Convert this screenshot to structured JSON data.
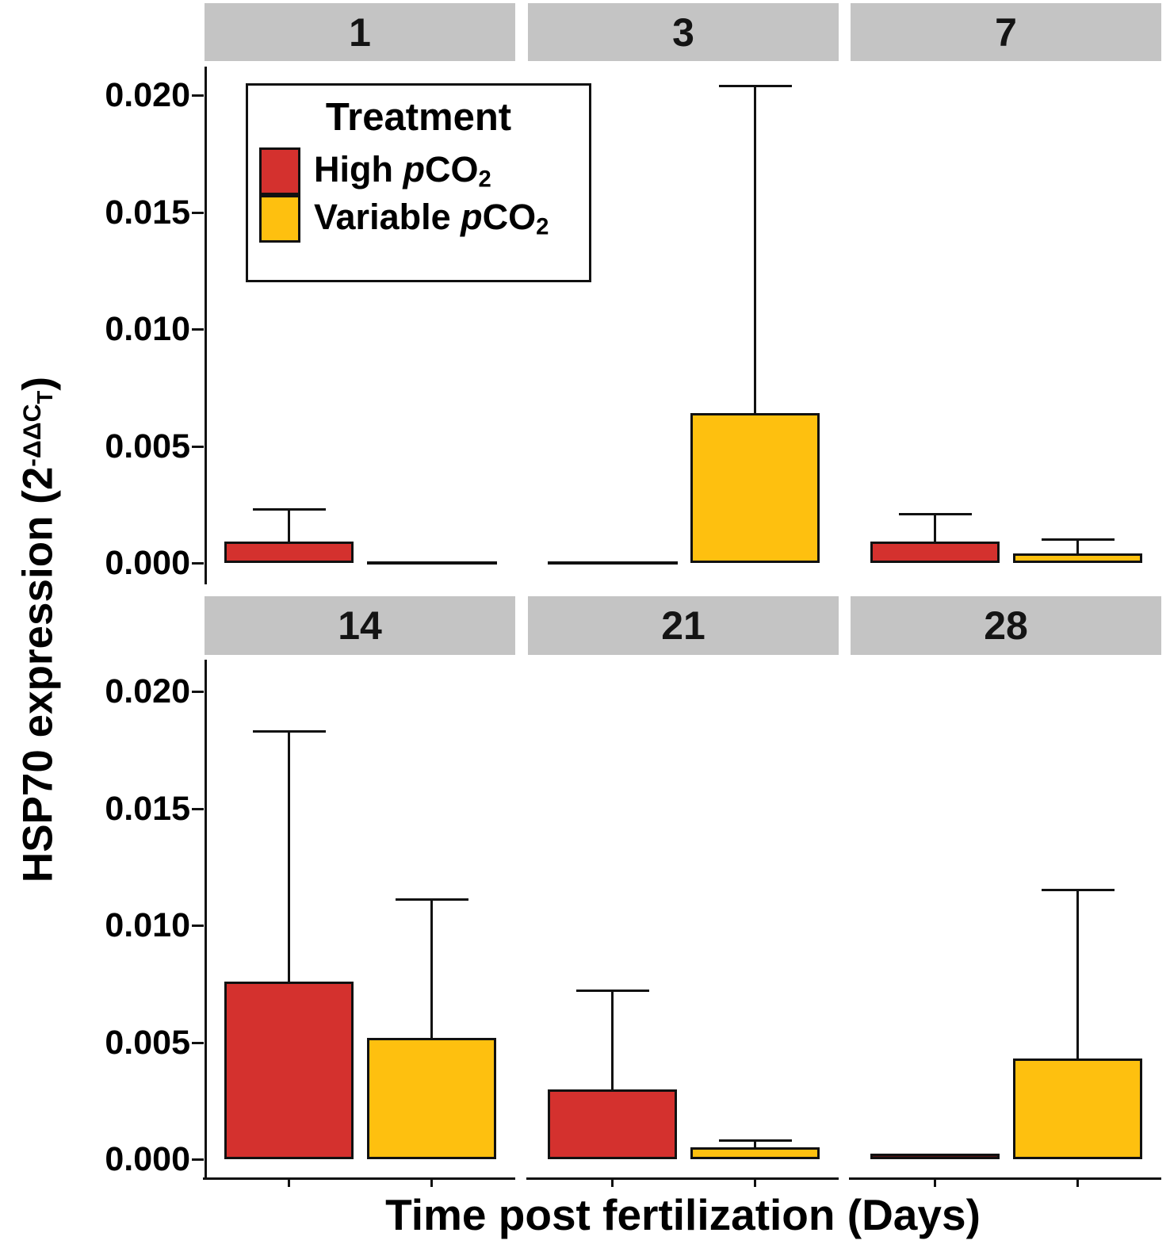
{
  "figure": {
    "xlabel": "Time post fertilization (Days)",
    "ylabel": {
      "text": "HSP70 expression (2-ΔΔCT)",
      "base": "HSP70 expression (2",
      "sup": "-ΔΔC",
      "sub": "T",
      "close": ")"
    },
    "legend": {
      "title": "Treatment",
      "position": "top-left panel",
      "items": [
        {
          "label": "High pCO2",
          "color": "#D4312E"
        },
        {
          "label": "Variable pCO2",
          "color": "#FEC00F"
        }
      ]
    }
  },
  "chart_data": {
    "type": "bar",
    "title": "",
    "xlabel": "Time post fertilization (Days)",
    "ylabel": "HSP70 expression (2-ΔΔCT)",
    "facet_variable": "Time post fertilization (Days)",
    "grid": false,
    "y_ticks_labels": [
      "0.020",
      "0.015",
      "0.010",
      "0.005",
      "0.000"
    ],
    "y_tick_values": [
      0.02,
      0.015,
      0.01,
      0.005,
      0.0
    ],
    "ylim": [
      -0.00085,
      0.0211
    ],
    "series_names": [
      "High pCO2",
      "Variable pCO2"
    ],
    "series_colors": {
      "High pCO2": "#D4312E",
      "Variable pCO2": "#FEC00F"
    },
    "colors": {
      "high_pco2_fill": "#D4312E",
      "variable_pco2_fill": "#FEC00F",
      "day28_high_pco2_dark_fill": "#541414",
      "strip_background": "#C4C4C4",
      "axis_and_border": "#111111"
    },
    "facets": [
      {
        "label": "1",
        "series": [
          {
            "name": "High pCO2",
            "value": 0.0009,
            "error_upper": 0.0023
          },
          {
            "name": "Variable pCO2",
            "value": 0.0,
            "error_upper": null
          }
        ]
      },
      {
        "label": "3",
        "series": [
          {
            "name": "High pCO2",
            "value": 0.0,
            "error_upper": null
          },
          {
            "name": "Variable pCO2",
            "value": 0.0064,
            "error_upper": 0.0204
          }
        ]
      },
      {
        "label": "7",
        "series": [
          {
            "name": "High pCO2",
            "value": 0.0009,
            "error_upper": 0.0021
          },
          {
            "name": "Variable pCO2",
            "value": 0.0004,
            "error_upper": 0.001
          }
        ]
      },
      {
        "label": "14",
        "series": [
          {
            "name": "High pCO2",
            "value": 0.0076,
            "error_upper": 0.0183
          },
          {
            "name": "Variable pCO2",
            "value": 0.0052,
            "error_upper": 0.0111
          }
        ]
      },
      {
        "label": "21",
        "series": [
          {
            "name": "High pCO2",
            "value": 0.003,
            "error_upper": 0.0072
          },
          {
            "name": "Variable pCO2",
            "value": 0.0005,
            "error_upper": 0.0008
          }
        ]
      },
      {
        "label": "28",
        "series": [
          {
            "name": "High pCO2",
            "value": 0.0001,
            "error_upper": 0.0002,
            "fill": "#541414"
          },
          {
            "name": "Variable pCO2",
            "value": 0.0043,
            "error_upper": 0.0115
          }
        ]
      }
    ]
  }
}
